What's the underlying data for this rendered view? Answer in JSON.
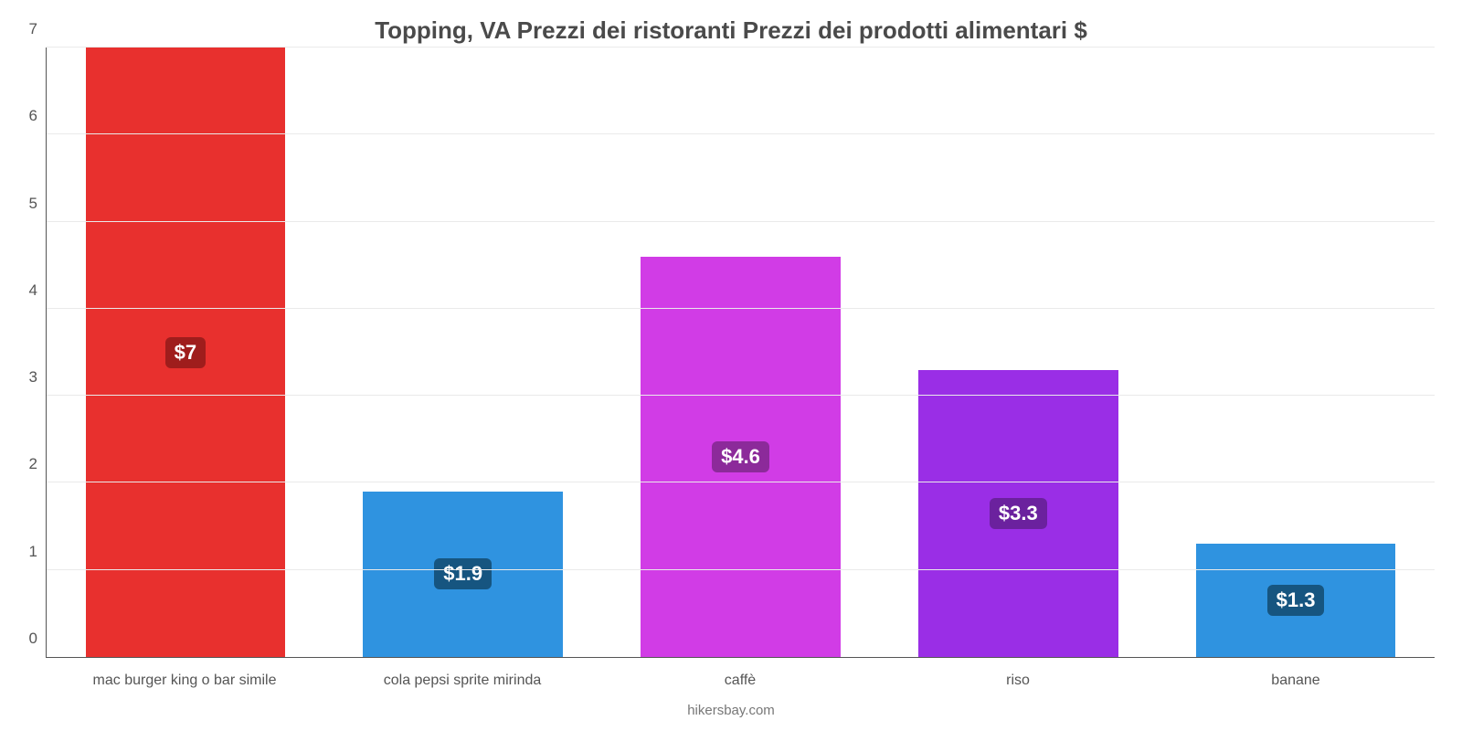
{
  "price_chart": {
    "type": "bar",
    "title": "Topping, VA Prezzi dei ristoranti Prezzi dei prodotti alimentari $",
    "title_fontsize": 26,
    "title_color": "#4a4a4a",
    "credit": "hikersbay.com",
    "credit_fontsize": 15,
    "credit_color": "#777777",
    "background_color": "#ffffff",
    "grid_color": "#eaeaea",
    "axis_color": "#555555",
    "ylim": [
      0,
      7
    ],
    "ytick_step": 1,
    "tick_fontsize": 17,
    "tick_color": "#555555",
    "xlabel_fontsize": 16,
    "badge_fontsize": 22,
    "bar_width_fraction": 0.72,
    "categories": [
      "mac burger king o bar simile",
      "cola pepsi sprite mirinda",
      "caffè",
      "riso",
      "banane"
    ],
    "values": [
      7,
      1.9,
      4.6,
      3.3,
      1.3
    ],
    "value_labels": [
      "$7",
      "$1.9",
      "$4.6",
      "$3.3",
      "$1.3"
    ],
    "bar_colors": [
      "#e8302e",
      "#2f93e0",
      "#d13ce6",
      "#9a2ee6",
      "#2f93e0"
    ],
    "badge_bg_colors": [
      "#9f1d1c",
      "#165580",
      "#8c2a9a",
      "#6b219e",
      "#165580"
    ],
    "badge_text_color": "#ffffff"
  }
}
